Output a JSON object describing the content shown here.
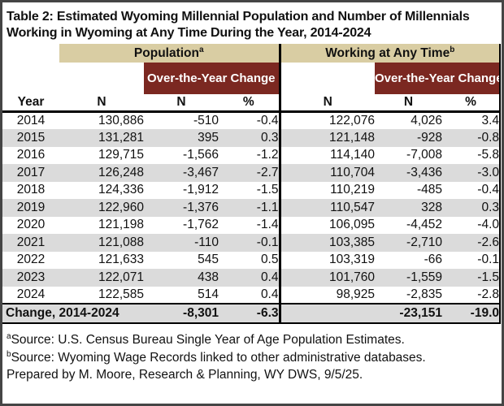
{
  "title": {
    "line1": "Table 2: Estimated Wyoming Millennial Population and Number of Millennials",
    "line2": "Working in Wyoming at Any Time During the Year, 2014-2024"
  },
  "colors": {
    "tan_header_bg": "#d9cda3",
    "maroon_header_bg": "#7b2821",
    "alt_row_bg": "#dbdbdb",
    "maroon_header_text": "#ffffff",
    "grid_line": "#000000",
    "frame_border": "#454545"
  },
  "table": {
    "group_headers": [
      {
        "label": "Population",
        "footnote_mark": "a"
      },
      {
        "label": "Working at Any Time",
        "footnote_mark": "b"
      }
    ],
    "subgroup_header": "Over-the-Year Change",
    "column_headers": {
      "year": "Year",
      "pop_n": "N",
      "pop_chg_n": "N",
      "pop_chg_pct": "%",
      "work_n": "N",
      "work_chg_n": "N",
      "work_chg_pct": "%"
    },
    "rows": [
      {
        "year": "2014",
        "pop_n": "130,886",
        "pop_chg_n": "-510",
        "pop_chg_pct": "-0.4",
        "work_n": "122,076",
        "work_chg_n": "4,026",
        "work_chg_pct": "3.4"
      },
      {
        "year": "2015",
        "pop_n": "131,281",
        "pop_chg_n": "395",
        "pop_chg_pct": "0.3",
        "work_n": "121,148",
        "work_chg_n": "-928",
        "work_chg_pct": "-0.8"
      },
      {
        "year": "2016",
        "pop_n": "129,715",
        "pop_chg_n": "-1,566",
        "pop_chg_pct": "-1.2",
        "work_n": "114,140",
        "work_chg_n": "-7,008",
        "work_chg_pct": "-5.8"
      },
      {
        "year": "2017",
        "pop_n": "126,248",
        "pop_chg_n": "-3,467",
        "pop_chg_pct": "-2.7",
        "work_n": "110,704",
        "work_chg_n": "-3,436",
        "work_chg_pct": "-3.0"
      },
      {
        "year": "2018",
        "pop_n": "124,336",
        "pop_chg_n": "-1,912",
        "pop_chg_pct": "-1.5",
        "work_n": "110,219",
        "work_chg_n": "-485",
        "work_chg_pct": "-0.4"
      },
      {
        "year": "2019",
        "pop_n": "122,960",
        "pop_chg_n": "-1,376",
        "pop_chg_pct": "-1.1",
        "work_n": "110,547",
        "work_chg_n": "328",
        "work_chg_pct": "0.3"
      },
      {
        "year": "2020",
        "pop_n": "121,198",
        "pop_chg_n": "-1,762",
        "pop_chg_pct": "-1.4",
        "work_n": "106,095",
        "work_chg_n": "-4,452",
        "work_chg_pct": "-4.0"
      },
      {
        "year": "2021",
        "pop_n": "121,088",
        "pop_chg_n": "-110",
        "pop_chg_pct": "-0.1",
        "work_n": "103,385",
        "work_chg_n": "-2,710",
        "work_chg_pct": "-2.6"
      },
      {
        "year": "2022",
        "pop_n": "121,633",
        "pop_chg_n": "545",
        "pop_chg_pct": "0.5",
        "work_n": "103,319",
        "work_chg_n": "-66",
        "work_chg_pct": "-0.1"
      },
      {
        "year": "2023",
        "pop_n": "122,071",
        "pop_chg_n": "438",
        "pop_chg_pct": "0.4",
        "work_n": "101,760",
        "work_chg_n": "-1,559",
        "work_chg_pct": "-1.5"
      },
      {
        "year": "2024",
        "pop_n": "122,585",
        "pop_chg_n": "514",
        "pop_chg_pct": "0.4",
        "work_n": "98,925",
        "work_chg_n": "-2,835",
        "work_chg_pct": "-2.8"
      }
    ],
    "summary_row": {
      "label": "Change, 2014-2024",
      "pop_chg_n": "-8,301",
      "pop_chg_pct": "-6.3",
      "work_n": "",
      "work_chg_n": "-23,151",
      "work_chg_pct": "-19.0"
    }
  },
  "footnotes": [
    {
      "mark": "a",
      "text": "Source: U.S. Census Bureau Single Year of Age Population Estimates."
    },
    {
      "mark": "b",
      "text": "Source: Wyoming Wage Records linked to other administrative databases."
    },
    {
      "mark": "",
      "text": "Prepared by M. Moore, Research & Planning, WY DWS, 9/5/25."
    }
  ]
}
